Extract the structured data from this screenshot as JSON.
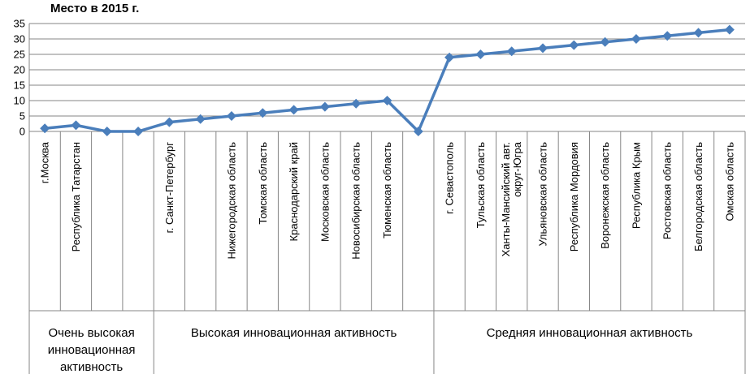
{
  "chart_data": {
    "type": "line",
    "title": "Место в 2015 г.",
    "xlabel": "",
    "ylabel": "",
    "ylim": [
      0,
      35
    ],
    "yticks": [
      0,
      5,
      10,
      15,
      20,
      25,
      30,
      35
    ],
    "grid": "horizontal",
    "legend": "none",
    "color": "#4a7ebb",
    "categories": [
      [
        "г.Москва"
      ],
      [
        "Республика Татарстан"
      ],
      [
        ""
      ],
      [
        ""
      ],
      [
        "г. Санкт-Петербург"
      ],
      [
        ""
      ],
      [
        "Нижегородская область"
      ],
      [
        "Томская область"
      ],
      [
        "Краснодарский край"
      ],
      [
        "Московская область"
      ],
      [
        "Новосибирская область"
      ],
      [
        "Тюменская область"
      ],
      [
        ""
      ],
      [
        "г. Севастополь"
      ],
      [
        "Тульская область"
      ],
      [
        "Ханты-Мансийский авт.",
        "округ-Югра"
      ],
      [
        "Ульяновская область"
      ],
      [
        "Республика Мордовия"
      ],
      [
        "Воронежская область"
      ],
      [
        "Республика Крым"
      ],
      [
        "Ростовская область"
      ],
      [
        "Белгородская область"
      ],
      [
        "Омская область"
      ]
    ],
    "values": [
      1,
      2,
      0,
      0,
      3,
      4,
      5,
      6,
      7,
      8,
      9,
      10,
      0,
      24,
      25,
      26,
      27,
      28,
      29,
      30,
      31,
      32,
      33
    ],
    "groups": [
      {
        "lines": [
          "Очень высокая",
          "инновационная",
          "активность"
        ],
        "start": 0,
        "end": 3
      },
      {
        "lines": [
          "Высокая инновационная активность"
        ],
        "start": 4,
        "end": 12
      },
      {
        "lines": [
          "Средняя инновационная активность"
        ],
        "start": 13,
        "end": 22
      }
    ]
  }
}
